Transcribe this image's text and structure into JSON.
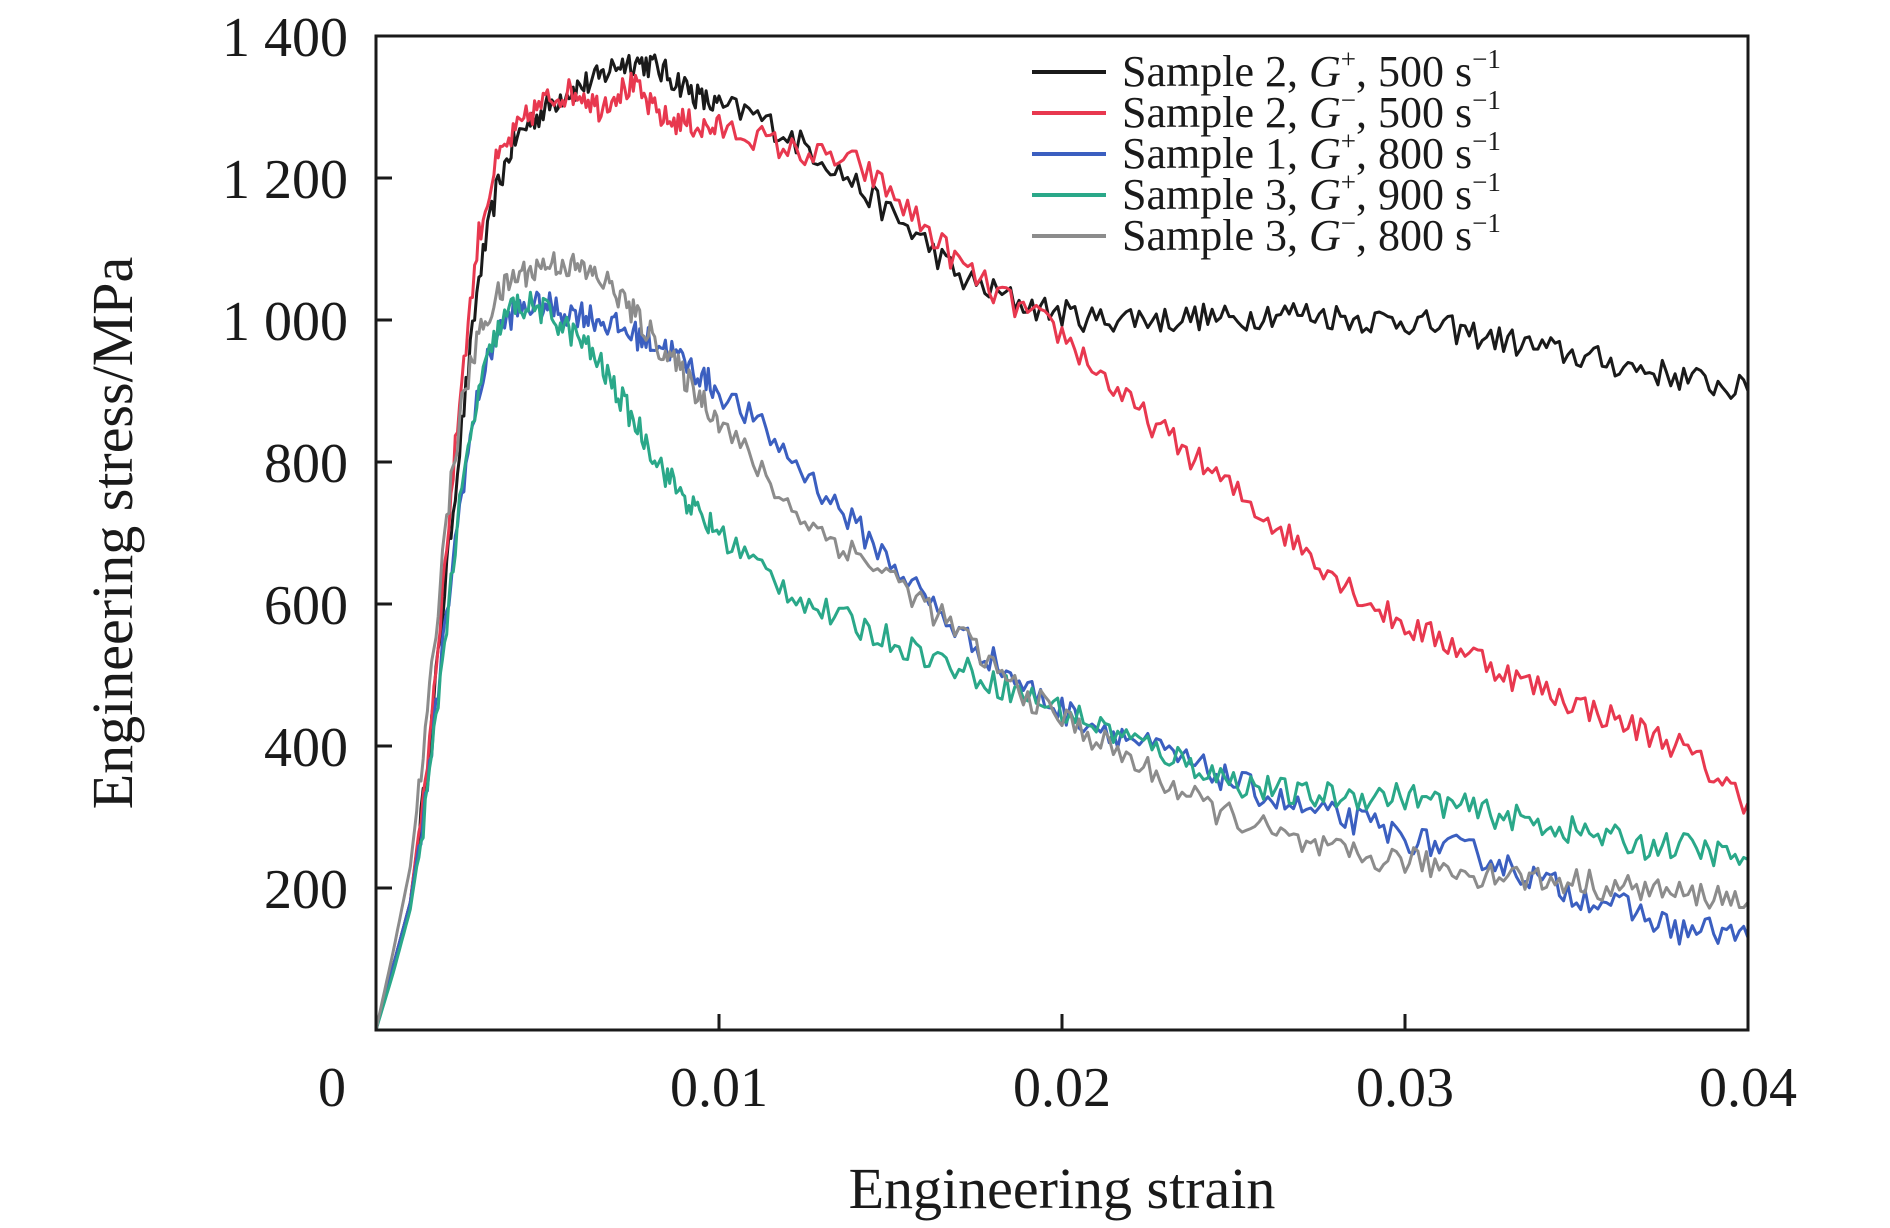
{
  "chart_data": {
    "type": "line",
    "title": "",
    "xlabel": "Engineering strain",
    "ylabel": "Engineering stress/MPa",
    "xlim": [
      0,
      0.04
    ],
    "ylim": [
      0,
      1400
    ],
    "x_ticks": [
      0,
      0.01,
      0.02,
      0.03,
      0.04
    ],
    "x_tick_labels": [
      "0",
      "0.01",
      "0.02",
      "0.03",
      "0.04"
    ],
    "y_ticks": [
      200,
      400,
      600,
      800,
      1000,
      1200,
      1400
    ],
    "y_tick_labels": [
      "200",
      "400",
      "600",
      "800",
      "1 000",
      "1 200",
      "1 400"
    ],
    "grid": false,
    "legend_position": "top-right",
    "series": [
      {
        "name": "Sample 2, G+, 500 s−1",
        "legend_parts": {
          "sample": "Sample 2, ",
          "g": "G",
          "sign": "+",
          "rate": ", 500 s",
          "exp": "−1"
        },
        "color": "#1a1a1a",
        "x": [
          0,
          0.0005,
          0.001,
          0.0015,
          0.002,
          0.0025,
          0.003,
          0.0035,
          0.004,
          0.0045,
          0.005,
          0.0055,
          0.006,
          0.0065,
          0.007,
          0.0075,
          0.008,
          0.0085,
          0.009,
          0.0095,
          0.01,
          0.011,
          0.012,
          0.013,
          0.014,
          0.015,
          0.016,
          0.017,
          0.018,
          0.019,
          0.02,
          0.021,
          0.022,
          0.023,
          0.024,
          0.025,
          0.026,
          0.027,
          0.028,
          0.029,
          0.03,
          0.031,
          0.032,
          0.033,
          0.034,
          0.035,
          0.036,
          0.037,
          0.038,
          0.039,
          0.04
        ],
        "y": [
          0,
          90,
          180,
          370,
          620,
          850,
          1060,
          1180,
          1250,
          1280,
          1300,
          1320,
          1330,
          1340,
          1360,
          1365,
          1360,
          1345,
          1330,
          1310,
          1300,
          1290,
          1260,
          1230,
          1190,
          1150,
          1110,
          1060,
          1040,
          1020,
          1010,
          1000,
          1005,
          1000,
          1005,
          1000,
          1010,
          1010,
          1005,
          1000,
          1000,
          990,
          980,
          970,
          960,
          950,
          940,
          930,
          920,
          910,
          900
        ]
      },
      {
        "name": "Sample 2, G−, 500 s−1",
        "legend_parts": {
          "sample": "Sample 2, ",
          "g": "G",
          "sign": "−",
          "rate": ", 500 s",
          "exp": "−1"
        },
        "color": "#e8384f",
        "x": [
          0,
          0.0005,
          0.001,
          0.0015,
          0.002,
          0.0025,
          0.003,
          0.0035,
          0.004,
          0.0045,
          0.005,
          0.0055,
          0.006,
          0.0065,
          0.007,
          0.0075,
          0.008,
          0.0085,
          0.009,
          0.0095,
          0.01,
          0.011,
          0.012,
          0.013,
          0.014,
          0.015,
          0.016,
          0.017,
          0.018,
          0.019,
          0.02,
          0.021,
          0.022,
          0.023,
          0.024,
          0.025,
          0.026,
          0.027,
          0.028,
          0.029,
          0.03,
          0.031,
          0.032,
          0.033,
          0.034,
          0.035,
          0.036,
          0.037,
          0.038,
          0.039,
          0.04
        ],
        "y": [
          0,
          90,
          180,
          380,
          650,
          920,
          1120,
          1220,
          1260,
          1290,
          1310,
          1320,
          1320,
          1300,
          1320,
          1330,
          1300,
          1280,
          1280,
          1270,
          1270,
          1260,
          1240,
          1230,
          1220,
          1180,
          1130,
          1080,
          1040,
          1010,
          980,
          930,
          880,
          840,
          800,
          760,
          720,
          680,
          640,
          600,
          570,
          550,
          530,
          500,
          480,
          460,
          440,
          420,
          400,
          360,
          320
        ]
      },
      {
        "name": "Sample 1, G+, 800 s−1",
        "legend_parts": {
          "sample": "Sample 1, ",
          "g": "G",
          "sign": "+",
          "rate": ", 800 s",
          "exp": "−1"
        },
        "color": "#3b5fc0",
        "x": [
          0,
          0.0005,
          0.001,
          0.0015,
          0.002,
          0.0025,
          0.003,
          0.0035,
          0.004,
          0.0045,
          0.005,
          0.0055,
          0.006,
          0.0065,
          0.007,
          0.0075,
          0.008,
          0.0085,
          0.009,
          0.0095,
          0.01,
          0.011,
          0.012,
          0.013,
          0.014,
          0.015,
          0.016,
          0.017,
          0.018,
          0.019,
          0.02,
          0.021,
          0.022,
          0.023,
          0.024,
          0.025,
          0.026,
          0.027,
          0.028,
          0.029,
          0.03,
          0.031,
          0.032,
          0.033,
          0.034,
          0.035,
          0.036,
          0.037,
          0.038,
          0.039,
          0.04
        ],
        "y": [
          0,
          90,
          180,
          340,
          560,
          760,
          900,
          980,
          1010,
          1020,
          1020,
          1010,
          1010,
          1000,
          990,
          980,
          970,
          960,
          940,
          920,
          900,
          860,
          810,
          760,
          710,
          660,
          610,
          560,
          520,
          480,
          450,
          430,
          410,
          390,
          370,
          350,
          330,
          310,
          300,
          290,
          270,
          260,
          250,
          230,
          210,
          190,
          180,
          160,
          140,
          140,
          130
        ]
      },
      {
        "name": "Sample 3, G+, 900 s−1",
        "legend_parts": {
          "sample": "Sample 3, ",
          "g": "G",
          "sign": "+",
          "rate": ", 900 s",
          "exp": "−1"
        },
        "color": "#2aa889",
        "x": [
          0,
          0.0005,
          0.001,
          0.0015,
          0.002,
          0.0025,
          0.003,
          0.0035,
          0.004,
          0.0045,
          0.005,
          0.0055,
          0.006,
          0.0065,
          0.007,
          0.0075,
          0.008,
          0.0085,
          0.009,
          0.0095,
          0.01,
          0.011,
          0.012,
          0.013,
          0.014,
          0.015,
          0.016,
          0.017,
          0.018,
          0.019,
          0.02,
          0.021,
          0.022,
          0.023,
          0.024,
          0.025,
          0.026,
          0.027,
          0.028,
          0.029,
          0.03,
          0.031,
          0.032,
          0.033,
          0.034,
          0.035,
          0.036,
          0.037,
          0.038,
          0.039,
          0.04
        ],
        "y": [
          0,
          80,
          170,
          330,
          550,
          760,
          900,
          980,
          1020,
          1020,
          1010,
          990,
          970,
          940,
          900,
          860,
          820,
          780,
          750,
          720,
          700,
          660,
          620,
          590,
          570,
          550,
          530,
          510,
          490,
          470,
          450,
          430,
          410,
          390,
          370,
          350,
          340,
          330,
          330,
          330,
          330,
          320,
          310,
          300,
          290,
          280,
          270,
          260,
          260,
          250,
          240
        ]
      },
      {
        "name": "Sample 3, G−, 800 s−1",
        "legend_parts": {
          "sample": "Sample 3, ",
          "g": "G",
          "sign": "−",
          "rate": ", 800 s",
          "exp": "−1"
        },
        "color": "#8c8c8c",
        "x": [
          0,
          0.0005,
          0.001,
          0.0015,
          0.002,
          0.0025,
          0.003,
          0.0035,
          0.004,
          0.0045,
          0.005,
          0.0055,
          0.006,
          0.0065,
          0.007,
          0.0075,
          0.008,
          0.0085,
          0.009,
          0.0095,
          0.01,
          0.011,
          0.012,
          0.013,
          0.014,
          0.015,
          0.016,
          0.017,
          0.018,
          0.019,
          0.02,
          0.021,
          0.022,
          0.023,
          0.024,
          0.025,
          0.026,
          0.027,
          0.028,
          0.029,
          0.03,
          0.031,
          0.032,
          0.033,
          0.034,
          0.035,
          0.036,
          0.037,
          0.038,
          0.039,
          0.04
        ],
        "y": [
          0,
          110,
          230,
          440,
          700,
          880,
          980,
          1030,
          1060,
          1070,
          1080,
          1080,
          1070,
          1060,
          1040,
          1010,
          980,
          950,
          920,
          890,
          860,
          800,
          740,
          700,
          670,
          640,
          600,
          560,
          510,
          470,
          440,
          410,
          380,
          350,
          320,
          300,
          280,
          260,
          250,
          240,
          240,
          230,
          220,
          220,
          210,
          210,
          200,
          200,
          190,
          190,
          180
        ]
      }
    ]
  }
}
